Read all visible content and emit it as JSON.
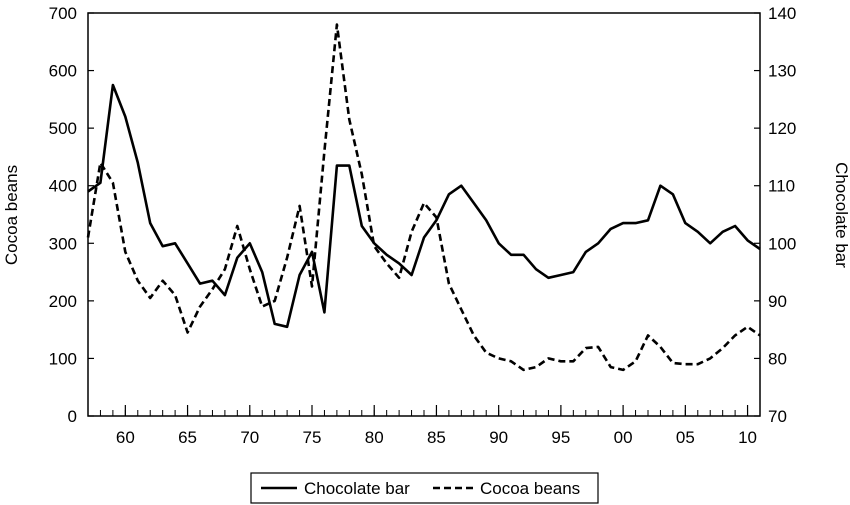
{
  "chart_data": {
    "type": "line",
    "x_tick_labels": [
      "60",
      "65",
      "70",
      "75",
      "80",
      "85",
      "90",
      "95",
      "00",
      "05",
      "10"
    ],
    "x_tick_years": [
      1960,
      1965,
      1970,
      1975,
      1980,
      1985,
      1990,
      1995,
      2000,
      2005,
      2010
    ],
    "xlim": [
      1957,
      2011
    ],
    "y_left": {
      "label": "Cocoa beans",
      "lim": [
        0,
        700
      ],
      "ticks": [
        0,
        100,
        200,
        300,
        400,
        500,
        600,
        700
      ]
    },
    "y_right": {
      "label": "Chocolate bar",
      "lim": [
        70,
        140
      ],
      "ticks": [
        70,
        80,
        90,
        100,
        110,
        120,
        130,
        140
      ]
    },
    "legend_position": "bottom",
    "series": [
      {
        "name": "Chocolate bar",
        "axis": "right",
        "style": "solid",
        "x": [
          1957,
          1958,
          1959,
          1960,
          1961,
          1962,
          1963,
          1964,
          1965,
          1966,
          1967,
          1968,
          1969,
          1970,
          1971,
          1972,
          1973,
          1974,
          1975,
          1976,
          1977,
          1978,
          1979,
          1980,
          1981,
          1982,
          1983,
          1984,
          1985,
          1986,
          1987,
          1988,
          1989,
          1990,
          1991,
          1992,
          1993,
          1994,
          1995,
          1996,
          1997,
          1998,
          1999,
          2000,
          2001,
          2002,
          2003,
          2004,
          2005,
          2006,
          2007,
          2008,
          2009,
          2010,
          2011
        ],
        "values": [
          109,
          110.5,
          127.5,
          122,
          114,
          103.5,
          99.5,
          100,
          96.5,
          93,
          93.5,
          91,
          97.5,
          100,
          95,
          86,
          85.5,
          94.5,
          98.5,
          88,
          113.5,
          113.5,
          103,
          100,
          98,
          96.5,
          94.5,
          101,
          104,
          108.5,
          110,
          107,
          104,
          100,
          98,
          98,
          95.5,
          94,
          94.5,
          95,
          98.5,
          100,
          102.5,
          103.5,
          103.5,
          104,
          110,
          108.5,
          103.5,
          102,
          100,
          102,
          103,
          100.5,
          99
        ]
      },
      {
        "name": "Cocoa beans",
        "axis": "left",
        "style": "dashed",
        "x": [
          1957,
          1958,
          1959,
          1960,
          1961,
          1962,
          1963,
          1964,
          1965,
          1966,
          1967,
          1968,
          1969,
          1970,
          1971,
          1972,
          1973,
          1974,
          1975,
          1976,
          1977,
          1978,
          1979,
          1980,
          1981,
          1982,
          1983,
          1984,
          1985,
          1986,
          1987,
          1988,
          1989,
          1990,
          1991,
          1992,
          1993,
          1994,
          1995,
          1996,
          1997,
          1998,
          1999,
          2000,
          2001,
          2002,
          2003,
          2004,
          2005,
          2006,
          2007,
          2008,
          2009,
          2010,
          2011
        ],
        "values": [
          310,
          440,
          405,
          285,
          235,
          205,
          235,
          210,
          145,
          190,
          220,
          255,
          330,
          255,
          190,
          200,
          275,
          365,
          225,
          460,
          680,
          515,
          420,
          295,
          265,
          240,
          320,
          370,
          345,
          230,
          185,
          140,
          110,
          100,
          95,
          80,
          85,
          100,
          95,
          95,
          118,
          120,
          85,
          80,
          95,
          140,
          120,
          92,
          90,
          90,
          100,
          118,
          140,
          155,
          140
        ]
      }
    ]
  }
}
